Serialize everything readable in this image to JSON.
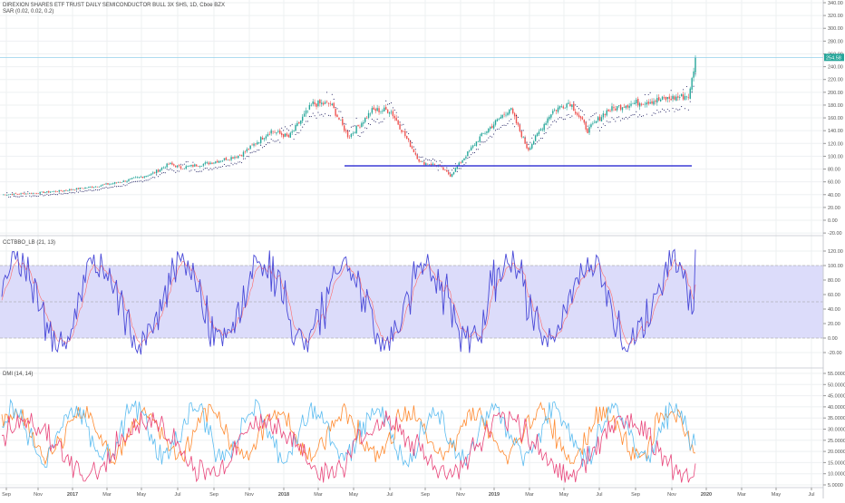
{
  "legends": {
    "main_title": "DIREXION SHARES ETF TRUST DAILY SEMICONDUCTOR BULL 3X SHS, 1D, Cboe BZX",
    "sar": "SAR (0.02, 0.02, 0.2)",
    "cci": "CCTBBO_LB (21, 13)",
    "dmi": "DMI (14, 14)"
  },
  "price_label": "254.58",
  "colors": {
    "up": "#26a69a",
    "down": "#ef5350",
    "sar": "#1a1a5e",
    "support_line": "#3b3bd6",
    "cci_line": "#4a4ad8",
    "cci_signal": "#ff6a6a",
    "band_fill": "#dcdcfa",
    "dmi_plus": "#5bbcf0",
    "dmi_minus": "#ff8a30",
    "adx": "#e8457a",
    "price_line": "#7fc8e8",
    "grid": "#eef0f2"
  },
  "chart_data": [
    {
      "type": "candlestick",
      "title": "DIREXION SHARES ETF TRUST DAILY SEMICONDUCTOR BULL 3X SHS, 1D, Cboe BZX",
      "x_ticks": [
        "Sep",
        "Nov",
        "2017",
        "Mar",
        "May",
        "Jul",
        "Sep",
        "Nov",
        "2018",
        "Mar",
        "May",
        "Jul",
        "Sep",
        "Nov",
        "2019",
        "Mar",
        "May",
        "Jul",
        "Sep",
        "Nov",
        "2020",
        "Mar",
        "May",
        "Jul"
      ],
      "y_ticks": [
        340,
        320,
        300,
        280,
        260,
        240,
        220,
        200,
        180,
        160,
        140,
        120,
        100,
        80,
        60,
        40,
        20,
        0,
        -20
      ],
      "y_tick_labels": [
        "340.00",
        "320.00",
        "300.00",
        "280.00",
        "260.00",
        "240.00",
        "220.00",
        "200.00",
        "180.00",
        "160.00",
        "140.00",
        "120.00",
        "100.00",
        "80.00",
        "60.00",
        "40.00",
        "20.00",
        "0.00",
        "-20.00"
      ],
      "ylim": [
        -25,
        345
      ],
      "grid": true,
      "last_price": 254.58,
      "support_level": 85,
      "support_range": [
        "2018-05",
        "2019-12"
      ],
      "close_keyframes": [
        [
          0,
          40
        ],
        [
          5,
          42
        ],
        [
          10,
          46
        ],
        [
          15,
          52
        ],
        [
          20,
          60
        ],
        [
          25,
          72
        ],
        [
          28,
          88
        ],
        [
          30,
          82
        ],
        [
          35,
          90
        ],
        [
          40,
          102
        ],
        [
          45,
          140
        ],
        [
          48,
          130
        ],
        [
          52,
          182
        ],
        [
          55,
          182
        ],
        [
          58,
          130
        ],
        [
          62,
          172
        ],
        [
          65,
          172
        ],
        [
          70,
          90
        ],
        [
          73,
          86
        ],
        [
          75,
          70
        ],
        [
          80,
          130
        ],
        [
          85,
          175
        ],
        [
          88,
          110
        ],
        [
          92,
          170
        ],
        [
          95,
          185
        ],
        [
          98,
          140
        ],
        [
          101,
          170
        ],
        [
          104,
          180
        ],
        [
          107,
          185
        ],
        [
          110,
          188
        ],
        [
          115,
          195
        ],
        [
          116,
          254
        ]
      ]
    },
    {
      "type": "line",
      "name": "CCTBBO_LB (21, 13)",
      "y_ticks": [
        120,
        100,
        80,
        60,
        40,
        20,
        0,
        -20,
        -40
      ],
      "y_tick_labels": [
        "120.00",
        "100.00",
        "80.00",
        "60.00",
        "40.00",
        "20.00",
        "0.00",
        "-20.00",
        "-40.00"
      ],
      "ylim": [
        -45,
        130
      ],
      "band": [
        0,
        100
      ],
      "midline": 50,
      "last_value": 122
    },
    {
      "type": "line",
      "name": "DMI (14, 14)",
      "y_ticks": [
        55,
        50,
        45,
        40,
        35,
        30,
        25,
        20,
        15,
        10,
        5
      ],
      "y_tick_labels": [
        "55.0000",
        "50.0000",
        "45.0000",
        "40.0000",
        "35.0000",
        "30.0000",
        "25.0000",
        "20.0000",
        "15.0000",
        "10.0000",
        "5.0000"
      ],
      "ylim": [
        5,
        57
      ],
      "series_order": [
        "DI+",
        "DI-",
        "ADX"
      ]
    }
  ]
}
